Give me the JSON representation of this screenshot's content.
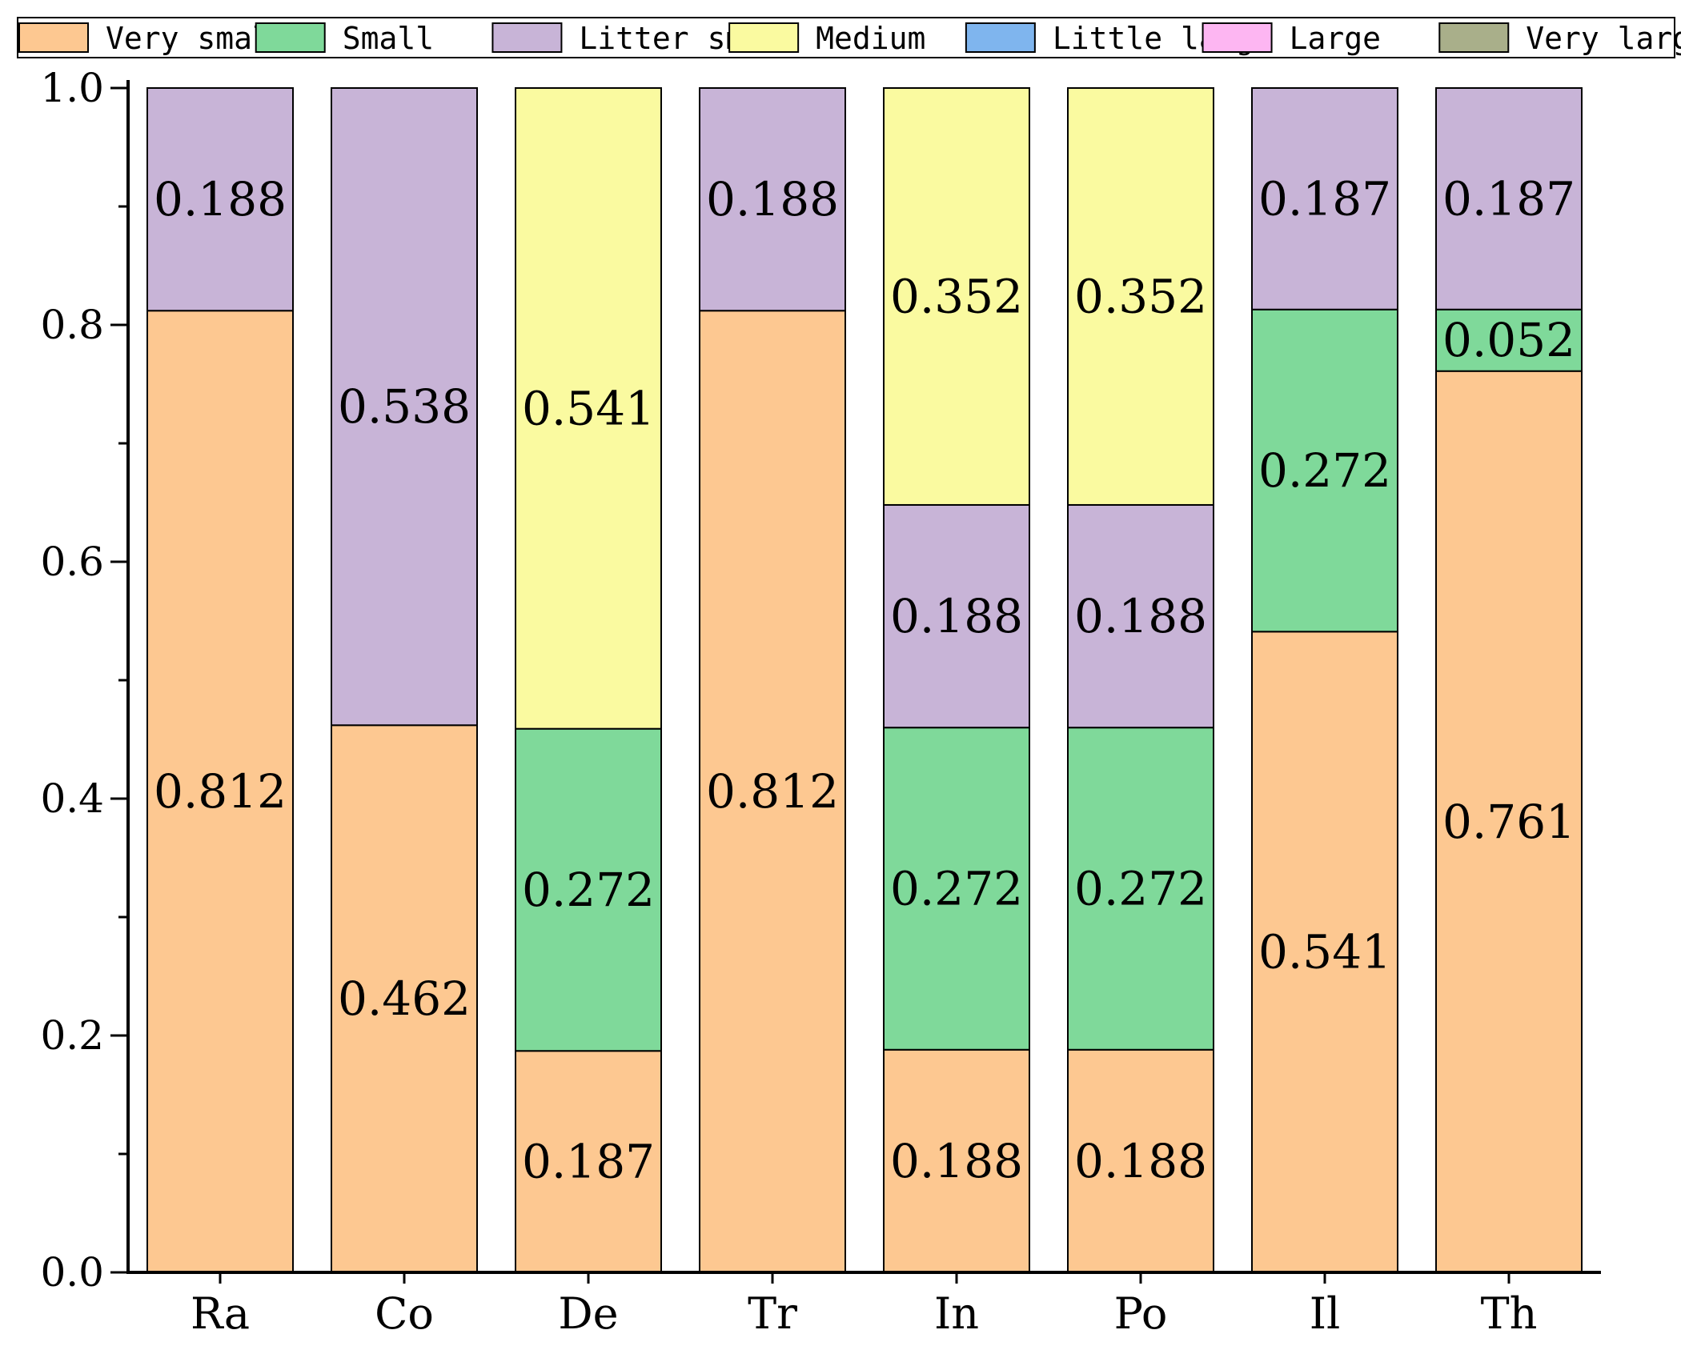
{
  "chart_data": {
    "type": "bar",
    "stacked": true,
    "categories": [
      "Ra",
      "Co",
      "De",
      "Tr",
      "In",
      "Po",
      "Il",
      "Th"
    ],
    "ylim": [
      0,
      1.0
    ],
    "yticks": [
      {
        "value": 0.0,
        "label": "0.0"
      },
      {
        "value": 0.2,
        "label": "0.2"
      },
      {
        "value": 0.4,
        "label": "0.4"
      },
      {
        "value": 0.6,
        "label": "0.6"
      },
      {
        "value": 0.8,
        "label": "0.8"
      },
      {
        "value": 1.0,
        "label": "1.0"
      }
    ],
    "title": "",
    "xlabel": "",
    "ylabel": "",
    "legend_position": "top",
    "series": [
      {
        "name": "Very small",
        "color": "#FDC891",
        "values": [
          0.812,
          0.462,
          0.187,
          0.812,
          0.188,
          0.188,
          0.541,
          0.761
        ],
        "labels": [
          "0.812",
          "0.462",
          "0.187",
          "0.812",
          "0.188",
          "0.188",
          "0.541",
          "0.761"
        ]
      },
      {
        "name": "Small",
        "color": "#7FD99A",
        "values": [
          0,
          0,
          0.272,
          0,
          0.272,
          0.272,
          0.272,
          0.052
        ],
        "labels": [
          "",
          "",
          "0.272",
          "",
          "0.272",
          "0.272",
          "0.272",
          "0.052"
        ]
      },
      {
        "name": "Litter small",
        "color": "#C8B4D7",
        "values": [
          0.188,
          0.538,
          0,
          0.188,
          0.188,
          0.188,
          0.187,
          0.187
        ],
        "labels": [
          "0.188",
          "0.538",
          "",
          "0.188",
          "0.188",
          "0.188",
          "0.187",
          "0.187"
        ]
      },
      {
        "name": "Medium",
        "color": "#FAFAA0",
        "values": [
          0,
          0,
          0.541,
          0,
          0.352,
          0.352,
          0,
          0
        ],
        "labels": [
          "",
          "",
          "0.541",
          "",
          "0.352",
          "0.352",
          "",
          ""
        ]
      },
      {
        "name": "Little large",
        "color": "#7FB5EE",
        "values": [
          0,
          0,
          0,
          0,
          0,
          0,
          0,
          0
        ],
        "labels": [
          "",
          "",
          "",
          "",
          "",
          "",
          "",
          ""
        ]
      },
      {
        "name": "Large",
        "color": "#FDB6F2",
        "values": [
          0,
          0,
          0,
          0,
          0,
          0,
          0,
          0
        ],
        "labels": [
          "",
          "",
          "",
          "",
          "",
          "",
          "",
          ""
        ]
      },
      {
        "name": "Very large",
        "color": "#A9AF8A",
        "values": [
          0,
          0,
          0,
          0,
          0,
          0,
          0,
          0
        ],
        "labels": [
          "",
          "",
          "",
          "",
          "",
          "",
          "",
          ""
        ]
      }
    ]
  }
}
